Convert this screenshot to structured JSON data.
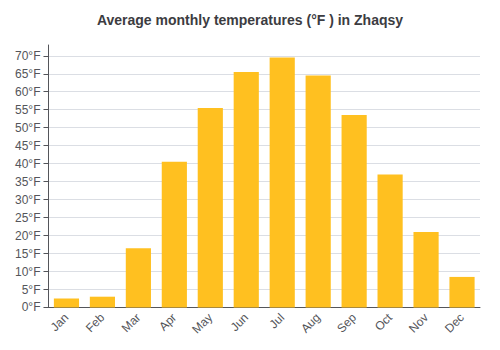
{
  "chart_data": {
    "type": "bar",
    "title": "Average monthly temperatures (°F ) in Zhaqsy",
    "categories": [
      "Jan",
      "Feb",
      "Mar",
      "Apr",
      "May",
      "Jun",
      "Jul",
      "Aug",
      "Sep",
      "Oct",
      "Nov",
      "Dec"
    ],
    "values": [
      2.5,
      3.0,
      16.5,
      40.5,
      55.5,
      65.5,
      69.5,
      64.5,
      53.5,
      37.0,
      21.0,
      8.5
    ],
    "color": "#FFC020",
    "ylim": [
      0,
      73
    ],
    "yticks": [
      {
        "value": 0,
        "label": "0°F"
      },
      {
        "value": 5,
        "label": "5°F"
      },
      {
        "value": 10,
        "label": "10°F"
      },
      {
        "value": 15,
        "label": "15°F"
      },
      {
        "value": 20,
        "label": "20°F"
      },
      {
        "value": 25,
        "label": "25°F"
      },
      {
        "value": 30,
        "label": "30°F"
      },
      {
        "value": 35,
        "label": "35°F"
      },
      {
        "value": 40,
        "label": "40°F"
      },
      {
        "value": 45,
        "label": "45°F"
      },
      {
        "value": 50,
        "label": "50°F"
      },
      {
        "value": 55,
        "label": "55°F"
      },
      {
        "value": 60,
        "label": "60°F"
      },
      {
        "value": 65,
        "label": "65°F"
      },
      {
        "value": 70,
        "label": "70°F"
      }
    ],
    "grid": true
  }
}
